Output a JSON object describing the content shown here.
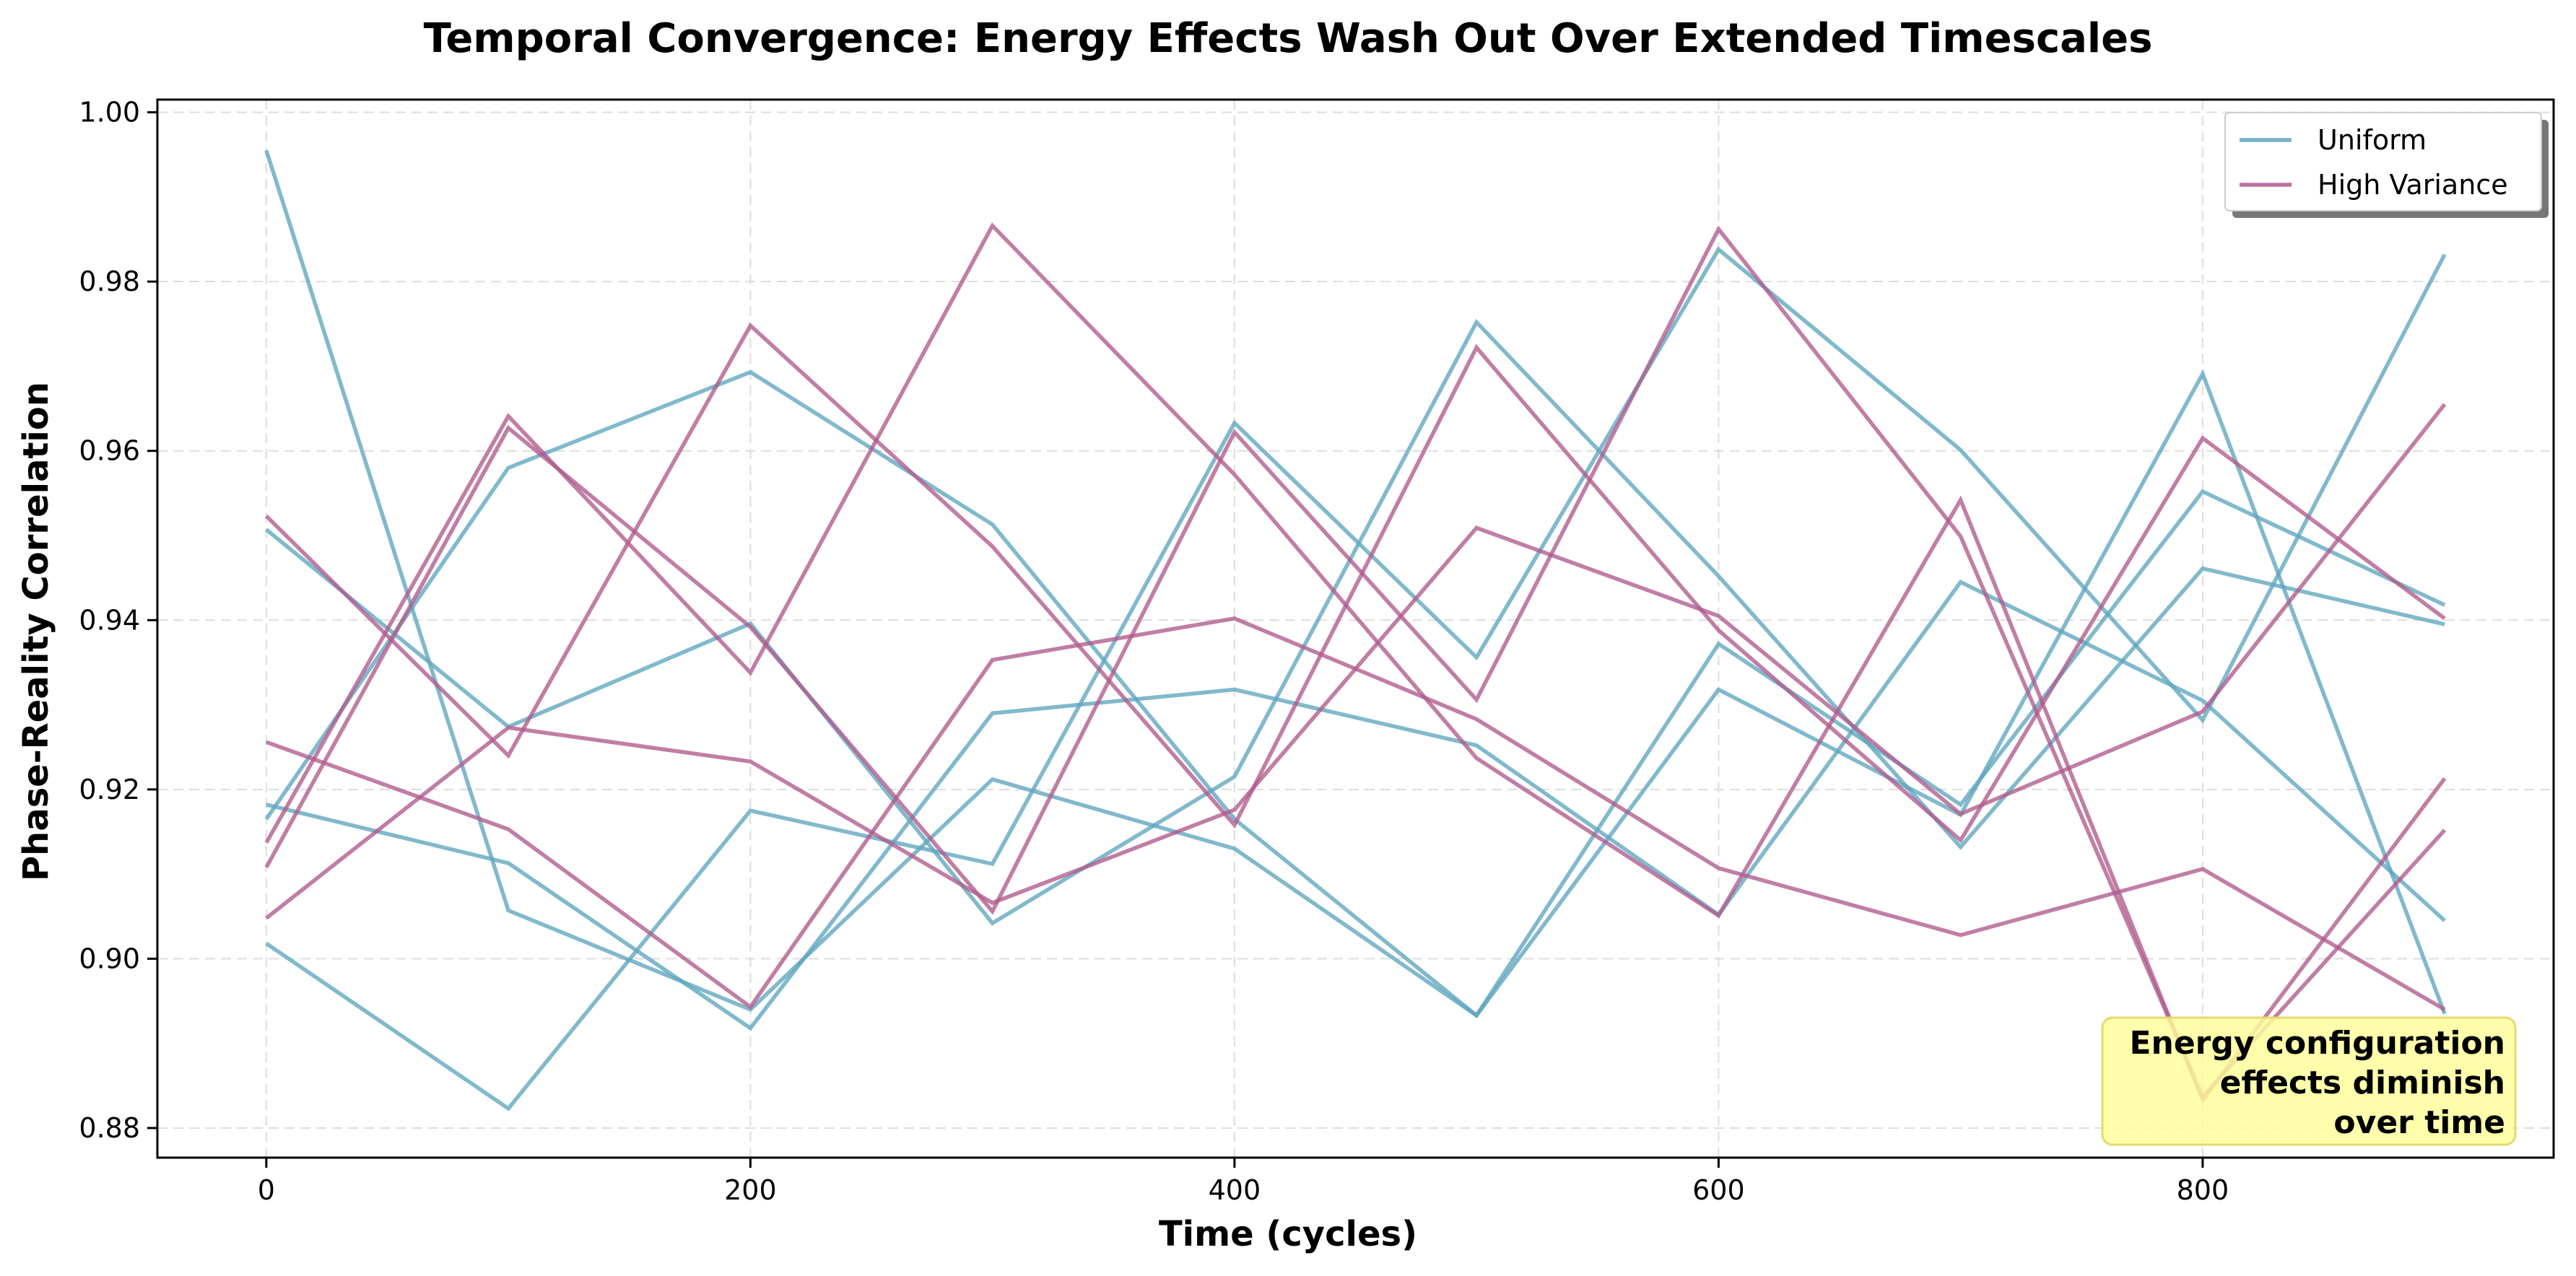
{
  "chart_data": {
    "type": "line",
    "title": "Temporal Convergence: Energy Effects Wash Out Over Extended Timescales",
    "xlabel": "Time (cycles)",
    "ylabel": "Phase-Reality Correlation",
    "xlim": [
      -45,
      945
    ],
    "ylim": [
      0.8765,
      1.0015
    ],
    "x_ticks": [
      0,
      200,
      400,
      600,
      800
    ],
    "y_ticks": [
      0.88,
      0.9,
      0.92,
      0.94,
      0.96,
      0.98,
      1.0
    ],
    "x_tick_labels": [
      "0",
      "200",
      "400",
      "600",
      "800"
    ],
    "y_tick_labels": [
      "0.88",
      "0.90",
      "0.92",
      "0.94",
      "0.96",
      "0.98",
      "1.00"
    ],
    "grid": true,
    "legend_position": "top-right",
    "x": [
      0,
      100,
      200,
      300,
      400,
      500,
      600,
      700,
      800,
      900
    ],
    "groups": [
      {
        "name": "Uniform",
        "color": "#5ea5be"
      },
      {
        "name": "High Variance",
        "color": "#b05a8c"
      }
    ],
    "series": [
      {
        "group": "Uniform",
        "values": [
          0.9955,
          0.9057,
          0.894,
          0.9212,
          0.913,
          0.8933,
          0.9318,
          0.917,
          0.9691,
          0.8935
        ]
      },
      {
        "group": "Uniform",
        "values": [
          0.9507,
          0.9274,
          0.9396,
          0.9042,
          0.9215,
          0.9752,
          0.9452,
          0.9132,
          0.9461,
          0.9395
        ]
      },
      {
        "group": "Uniform",
        "values": [
          0.9018,
          0.8823,
          0.9175,
          0.9112,
          0.9633,
          0.9356,
          0.9838,
          0.9601,
          0.9282,
          0.9832
        ]
      },
      {
        "group": "Uniform",
        "values": [
          0.9165,
          0.958,
          0.9693,
          0.9513,
          0.9165,
          0.8933,
          0.9372,
          0.9182,
          0.9552,
          0.9418
        ]
      },
      {
        "group": "Uniform",
        "values": [
          0.9182,
          0.9113,
          0.8918,
          0.929,
          0.9318,
          0.9252,
          0.9052,
          0.9445,
          0.9305,
          0.9045
        ]
      },
      {
        "group": "High Variance",
        "values": [
          0.9523,
          0.924,
          0.9748,
          0.9487,
          0.9158,
          0.9722,
          0.9388,
          0.914,
          0.9615,
          0.9402
        ]
      },
      {
        "group": "High Variance",
        "values": [
          0.9137,
          0.9641,
          0.9338,
          0.9866,
          0.9572,
          0.9237,
          0.9051,
          0.9542,
          0.8833,
          0.9213
        ]
      },
      {
        "group": "High Variance",
        "values": [
          0.9108,
          0.9627,
          0.9392,
          0.9056,
          0.9622,
          0.9306,
          0.9862,
          0.9499,
          0.8837,
          0.9152
        ]
      },
      {
        "group": "High Variance",
        "values": [
          0.9256,
          0.9153,
          0.8943,
          0.9353,
          0.9402,
          0.9283,
          0.9107,
          0.9028,
          0.9106,
          0.894
        ]
      },
      {
        "group": "High Variance",
        "values": [
          0.9048,
          0.9273,
          0.9233,
          0.9066,
          0.9176,
          0.9509,
          0.9405,
          0.9171,
          0.9292,
          0.9655
        ]
      }
    ],
    "annotation": {
      "lines": [
        "Energy configuration",
        "effects diminish",
        "over time"
      ],
      "box_color": "#ffff99",
      "border_color": "#e6d96e"
    },
    "colors": {
      "uniform": "#5ea5be",
      "high_variance": "#b05a8c",
      "grid": "#dddddd",
      "axis": "#000000"
    }
  }
}
